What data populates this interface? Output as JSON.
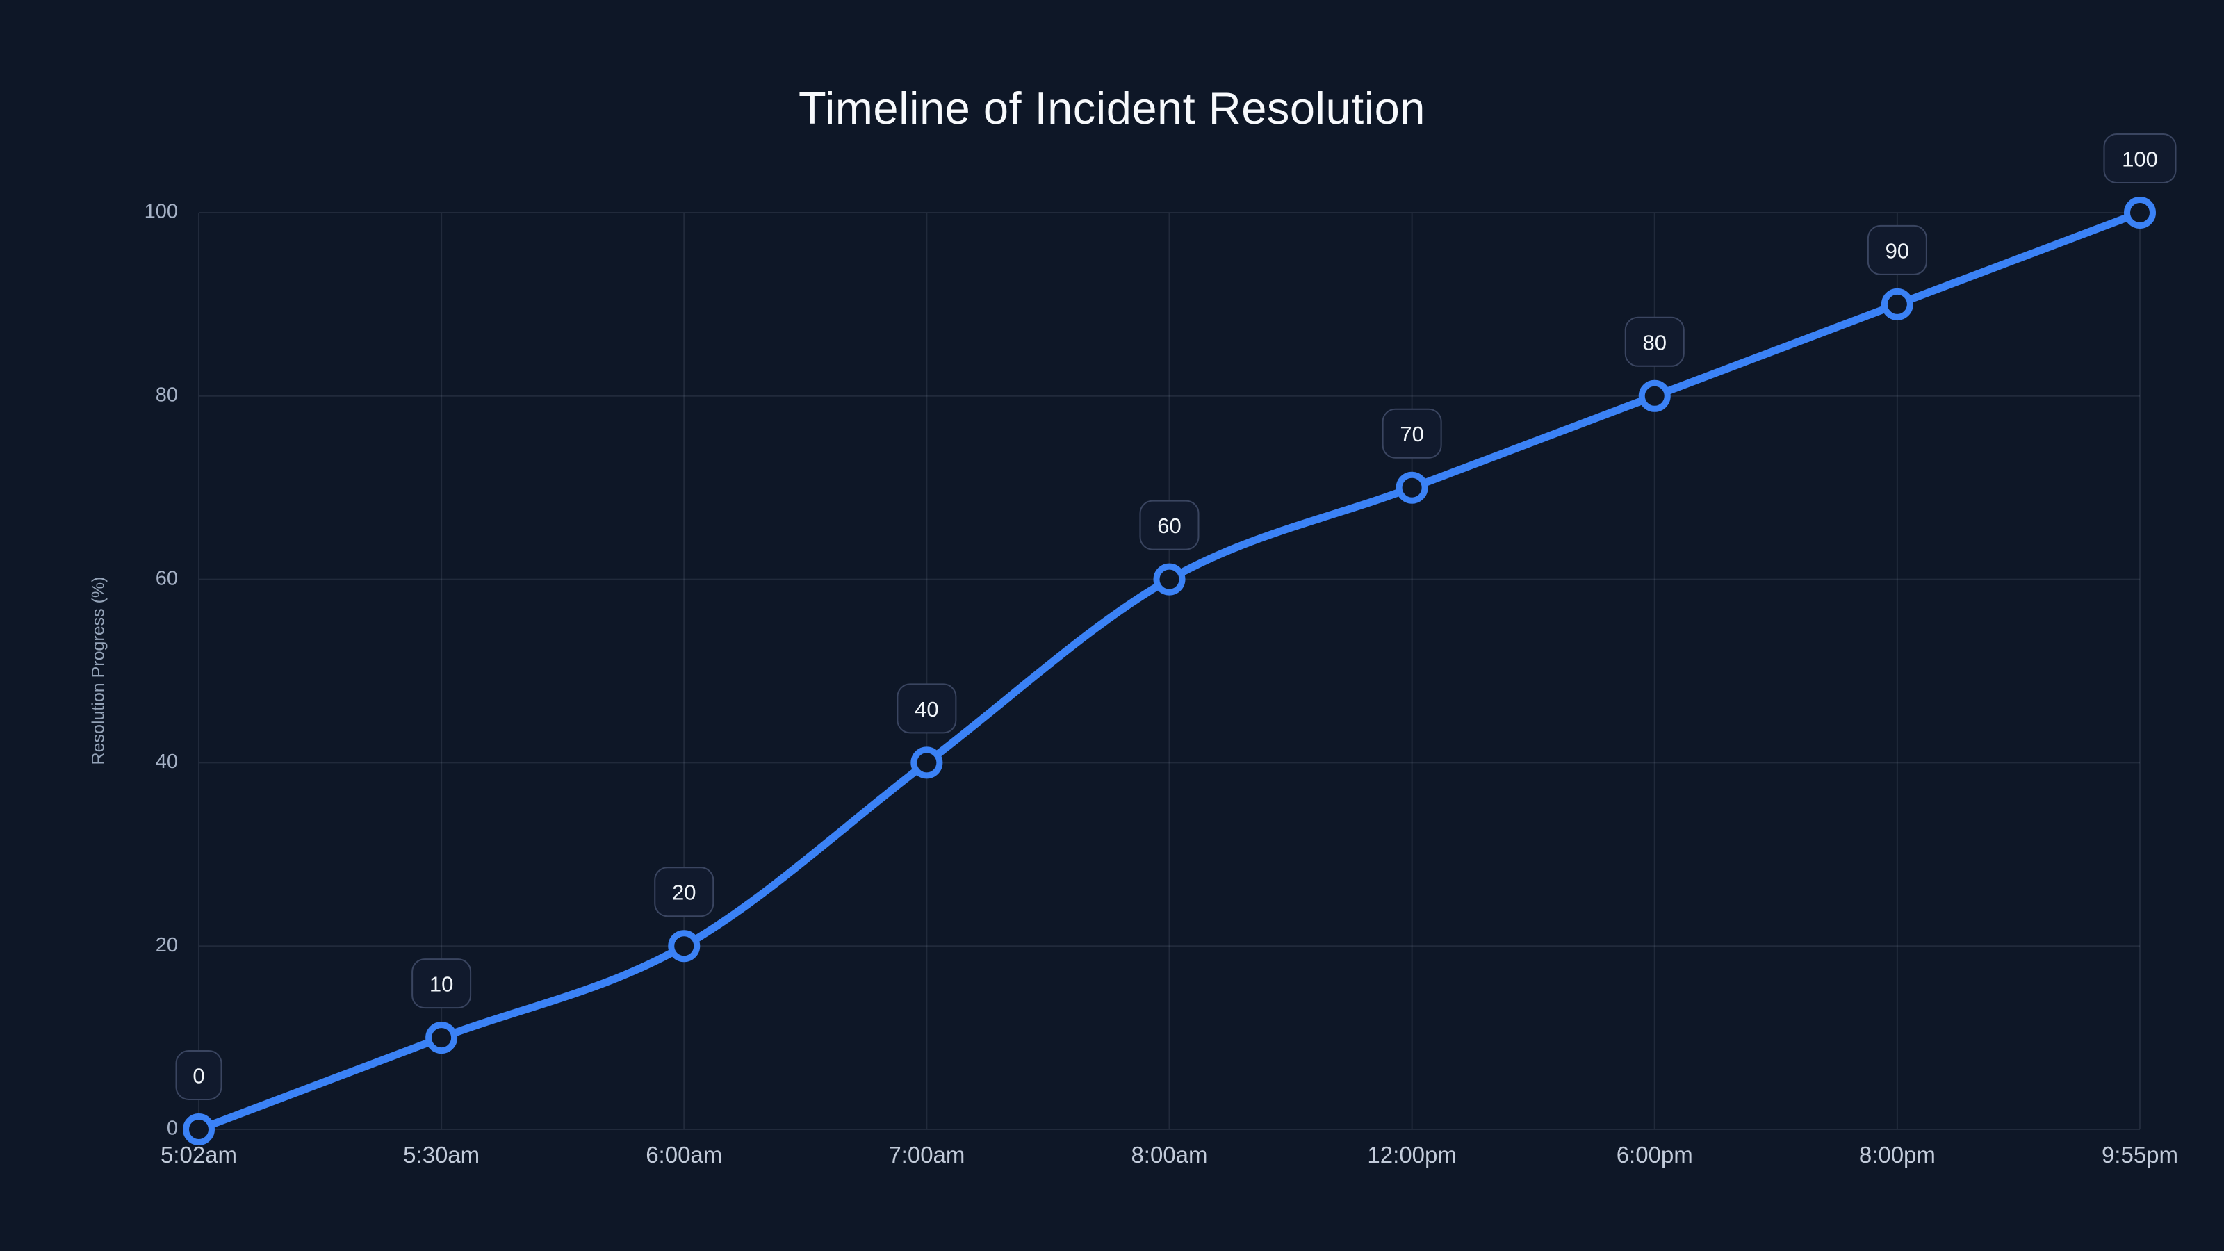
{
  "chart_data": {
    "type": "line",
    "title": "Timeline of Incident Resolution",
    "xlabel": "",
    "ylabel": "Resolution Progress (%)",
    "categories": [
      "5:02am",
      "5:30am",
      "6:00am",
      "7:00am",
      "8:00am",
      "12:00pm",
      "6:00pm",
      "8:00pm",
      "9:55pm"
    ],
    "values": [
      0,
      10,
      20,
      40,
      60,
      70,
      80,
      90,
      100
    ],
    "point_labels": [
      "0",
      "10",
      "20",
      "40",
      "60",
      "70",
      "80",
      "90",
      "100"
    ],
    "y_ticks": [
      0,
      20,
      40,
      60,
      80,
      100
    ],
    "ylim": [
      0,
      100
    ],
    "grid": true,
    "legend_position": "none",
    "line_style": "smooth",
    "colors": {
      "background": "#0e1727",
      "line": "#3b82f6",
      "marker_fill": "#0e1727",
      "grid": "rgba(148,163,184,0.14)",
      "x_tick_label": "#c2cbda",
      "y_tick_label": "#a6b2c6",
      "axis_title": "#94a3b8",
      "title": "#f7f9fc",
      "badge_background": "#111a2d",
      "badge_border": "#3a4560",
      "badge_text": "#f1f5f9"
    }
  }
}
